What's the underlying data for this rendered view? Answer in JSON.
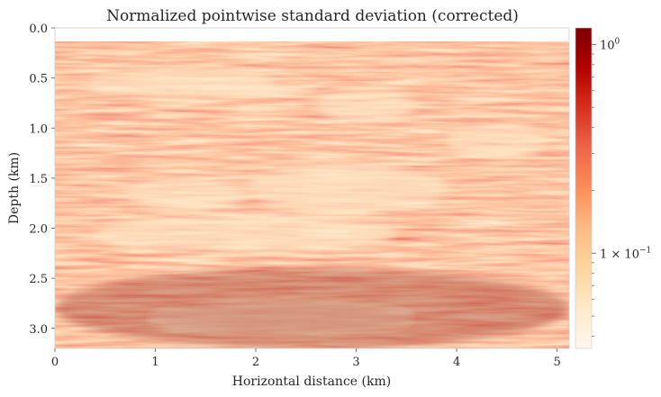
{
  "chart_data": {
    "type": "heatmap",
    "title": "Normalized pointwise standard deviation (corrected)",
    "xlabel": "Horizontal distance (km)",
    "ylabel": "Depth (km)",
    "xlim": [
      0,
      5.12
    ],
    "ylim": [
      3.2,
      0.0
    ],
    "x_ticks": [
      0,
      1,
      2,
      3,
      4,
      5
    ],
    "x_tick_labels": [
      "0",
      "1",
      "2",
      "3",
      "4",
      "5"
    ],
    "y_ticks": [
      0.0,
      0.5,
      1.0,
      1.5,
      2.0,
      2.5,
      3.0
    ],
    "y_tick_labels": [
      "0.0",
      "0.5",
      "1.0",
      "1.5",
      "2.0",
      "2.5",
      "3.0"
    ],
    "data_top_depth": 0.12,
    "colormap": "OrRd",
    "colormap_colors": [
      "#fff7ec",
      "#fee8c8",
      "#fdd49e",
      "#fdbb84",
      "#fc8d59",
      "#ef6548",
      "#d7301f",
      "#b30000",
      "#7f0000"
    ],
    "colorbar": {
      "scale": "log",
      "range": [
        0.035,
        1.2
      ],
      "ticks": [
        {
          "value": 1.0,
          "label_base": "10",
          "label_exp": "0"
        },
        {
          "value": 0.1,
          "label_base": "1 × 10",
          "label_exp": "−1"
        }
      ],
      "minor_ticks": [
        0.04,
        0.05,
        0.06,
        0.07,
        0.08,
        0.09,
        0.2,
        0.3,
        0.4,
        0.5,
        0.6,
        0.7,
        0.8,
        0.9
      ]
    },
    "features": [
      {
        "desc": "low-variance band",
        "x": [
          0.3,
          2.2
        ],
        "depth": [
          0.4,
          0.7
        ]
      },
      {
        "desc": "low-variance band",
        "x": [
          1.2,
          2.6
        ],
        "depth": [
          0.55,
          0.68
        ]
      },
      {
        "desc": "low-variance dipping band",
        "x": [
          2.6,
          3.6
        ],
        "depth": [
          0.6,
          0.95
        ]
      },
      {
        "desc": "low-variance blob",
        "x": [
          3.9,
          4.9
        ],
        "depth": [
          0.95,
          1.3
        ]
      },
      {
        "desc": "low-variance lens",
        "x": [
          0.7,
          1.9
        ],
        "depth": [
          1.5,
          1.82
        ]
      },
      {
        "desc": "low-variance lens",
        "x": [
          1.9,
          3.9
        ],
        "depth": [
          1.35,
          1.85
        ]
      },
      {
        "desc": "low-variance band",
        "x": [
          0.4,
          3.4
        ],
        "depth": [
          1.85,
          2.25
        ]
      },
      {
        "desc": "low-variance band",
        "x": [
          1.0,
          3.5
        ],
        "depth": [
          2.75,
          3.05
        ]
      },
      {
        "desc": "dense high-variance streaks",
        "x": [
          0,
          5.12
        ],
        "depth": [
          2.4,
          3.2
        ]
      }
    ]
  }
}
